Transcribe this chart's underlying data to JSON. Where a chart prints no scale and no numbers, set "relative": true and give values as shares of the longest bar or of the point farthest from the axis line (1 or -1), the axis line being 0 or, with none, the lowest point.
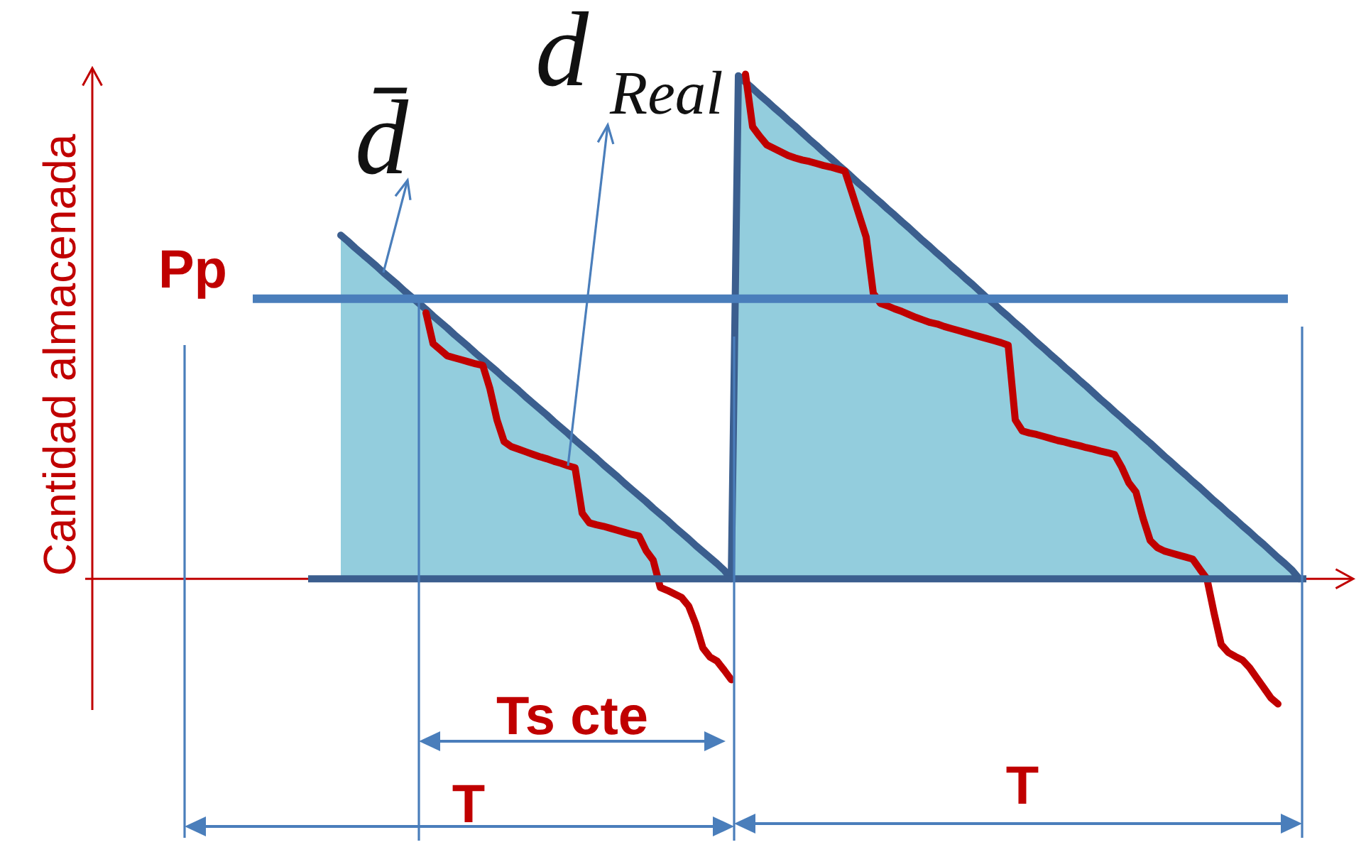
{
  "chart_data": {
    "type": "area",
    "relative": true,
    "ylabel": "Cantidad almacenada",
    "legend": false,
    "categories": [
      null,
      null,
      null,
      null,
      null,
      null,
      null,
      null,
      null,
      null,
      null,
      null,
      null,
      null,
      null,
      null,
      null,
      null,
      null,
      null,
      null,
      null,
      null,
      null,
      null,
      null,
      null,
      null,
      null,
      null,
      null,
      null,
      null,
      null,
      null,
      null,
      null,
      null,
      null,
      null,
      null,
      null,
      null,
      null,
      null,
      null,
      null,
      null,
      null,
      null,
      null,
      null,
      null,
      null,
      null,
      null,
      null,
      null,
      null,
      null,
      null,
      null,
      null,
      null,
      null,
      null,
      null,
      null,
      null,
      null,
      null,
      null,
      null,
      null,
      null,
      null,
      null,
      null,
      null,
      null,
      null,
      null,
      null,
      null,
      null,
      null,
      null,
      null,
      null,
      null,
      null,
      null,
      null,
      null,
      null,
      null,
      null,
      null,
      null,
      null,
      null,
      null,
      null,
      null,
      null,
      null,
      null,
      null,
      null,
      null,
      null,
      null,
      null,
      null,
      null,
      null,
      null,
      null,
      null,
      null,
      null,
      null,
      null,
      null,
      null,
      null,
      null,
      null,
      null,
      null,
      null,
      null,
      null,
      null,
      null,
      null,
      null,
      null,
      null,
      null,
      null,
      null,
      null,
      null,
      null,
      null,
      null,
      null,
      null,
      null,
      null,
      null,
      null,
      null,
      null,
      null,
      null,
      null,
      null,
      null,
      null,
      null,
      null,
      null,
      null,
      null,
      null,
      null,
      null,
      null,
      null,
      null,
      null,
      null,
      null,
      null,
      null
    ],
    "series": [
      {
        "color": "#93cddd",
        "values": [
          null,
          null,
          null,
          null,
          null,
          null,
          null,
          null,
          null,
          null,
          null,
          null,
          null,
          null,
          null,
          null,
          null,
          null,
          null,
          null,
          null,
          null,
          null,
          null,
          null,
          null,
          null,
          null,
          null,
          null,
          null,
          null,
          null,
          null,
          null,
          0.681,
          0.669,
          0.656,
          0.644,
          0.632,
          0.62,
          0.607,
          0.595,
          0.583,
          0.57,
          0.558,
          0.546,
          0.534,
          0.521,
          0.509,
          0.497,
          0.484,
          0.472,
          0.46,
          0.447,
          0.435,
          0.423,
          0.411,
          0.398,
          0.386,
          0.374,
          0.361,
          0.349,
          0.337,
          0.325,
          0.312,
          0.3,
          0.288,
          0.275,
          0.263,
          0.251,
          0.239,
          0.226,
          0.214,
          0.202,
          0.189,
          0.177,
          0.165,
          0.153,
          0.14,
          0.128,
          0.116,
          0.103,
          0.091,
          0.079,
          0.066,
          0.054,
          0.042,
          0.03,
          0.017,
          0,
          0.997,
          0.984,
          0.972,
          0.959,
          0.947,
          0.934,
          0.922,
          0.909,
          0.897,
          0.884,
          0.871,
          0.859,
          0.846,
          0.834,
          0.821,
          0.809,
          0.796,
          0.783,
          0.771,
          0.758,
          0.746,
          0.733,
          0.721,
          0.708,
          0.696,
          0.683,
          0.67,
          0.658,
          0.645,
          0.633,
          0.62,
          0.608,
          0.595,
          0.583,
          0.57,
          0.557,
          0.545,
          0.532,
          0.52,
          0.507,
          0.495,
          0.482,
          0.469,
          0.457,
          0.444,
          0.432,
          0.419,
          0.407,
          0.394,
          0.382,
          0.369,
          0.356,
          0.344,
          0.331,
          0.319,
          0.306,
          0.294,
          0.281,
          0.269,
          0.256,
          0.243,
          0.231,
          0.218,
          0.206,
          0.193,
          0.181,
          0.168,
          0.155,
          0.143,
          0.13,
          0.118,
          0.105,
          0.093,
          0.08,
          0.068,
          0.055,
          0.042,
          0.03,
          0.017,
          0,
          null,
          null,
          null,
          null,
          null,
          null
        ]
      },
      {
        "type": "line",
        "name": "d$_{Real}$",
        "color": "#c00000",
        "values": [
          null,
          null,
          null,
          null,
          null,
          null,
          null,
          null,
          null,
          null,
          null,
          null,
          null,
          null,
          null,
          null,
          null,
          null,
          null,
          null,
          null,
          null,
          null,
          null,
          null,
          null,
          null,
          null,
          null,
          null,
          null,
          null,
          null,
          null,
          null,
          null,
          null,
          null,
          null,
          null,
          null,
          null,
          null,
          null,
          null,
          null,
          null,
          0.527,
          0.466,
          0.454,
          0.442,
          0.438,
          0.434,
          0.43,
          0.426,
          0.423,
          0.377,
          0.315,
          0.272,
          0.262,
          0.257,
          0.252,
          0.247,
          0.242,
          0.238,
          0.233,
          0.229,
          0.224,
          0.22,
          0.13,
          0.111,
          0.107,
          0.104,
          0.1,
          0.096,
          0.092,
          0.088,
          0.085,
          0.056,
          0.037,
          -0.017,
          -0.023,
          -0.03,
          -0.037,
          -0.054,
          -0.09,
          -0.137,
          -0.155,
          -0.163,
          -0.181,
          -0.2,
          null,
          1,
          0.896,
          0.877,
          0.86,
          0.853,
          0.846,
          0.839,
          0.834,
          0.83,
          0.827,
          0.823,
          0.819,
          0.816,
          0.812,
          0.808,
          0.765,
          0.721,
          0.677,
          0.566,
          0.546,
          0.541,
          0.535,
          0.53,
          0.524,
          0.518,
          0.513,
          0.508,
          0.505,
          0.5,
          0.496,
          0.492,
          0.488,
          0.484,
          0.48,
          0.476,
          0.472,
          0.468,
          0.463,
          0.315,
          0.293,
          0.289,
          0.286,
          0.282,
          0.278,
          0.274,
          0.271,
          0.267,
          0.264,
          0.26,
          0.257,
          0.253,
          0.25,
          0.246,
          0.221,
          0.19,
          0.172,
          0.12,
          0.076,
          0.062,
          0.055,
          0.051,
          0.047,
          0.043,
          0.039,
          0.019,
          0,
          -0.068,
          -0.13,
          -0.146,
          -0.154,
          -0.161,
          -0.176,
          -0.196,
          -0.216,
          -0.236,
          -0.248,
          null,
          null,
          null,
          null,
          null,
          null,
          null,
          null,
          null
        ]
      }
    ],
    "ref_lines": [
      {
        "axis": "y",
        "value": 0,
        "color": "#c00000"
      },
      {
        "axis": "y",
        "value": 0,
        "color": "#3b5e8e"
      },
      {
        "axis": "y",
        "value": 0.555,
        "label": "Pp",
        "color": "#4a7ebb"
      }
    ],
    "annotations": [
      "d̄",
      "Ts cte",
      "T",
      "T"
    ]
  }
}
